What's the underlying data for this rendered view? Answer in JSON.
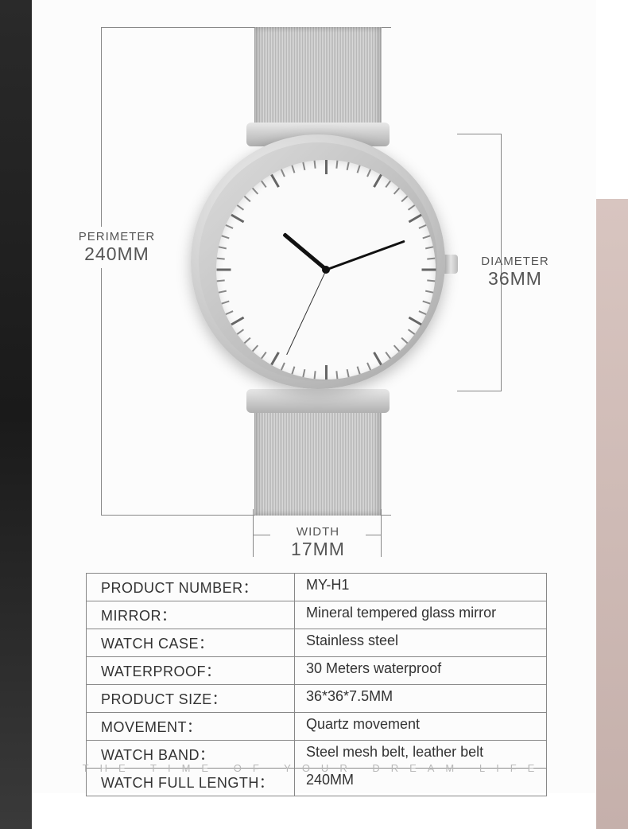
{
  "dimensions": {
    "perimeter": {
      "label": "PERIMETER",
      "value": "240MM"
    },
    "diameter": {
      "label": "DIAMETER",
      "value": "36MM"
    },
    "width": {
      "label": "WIDTH",
      "value": "17MM"
    }
  },
  "watch": {
    "time": {
      "hour_angle": -50,
      "minute_angle": 70,
      "second_angle": 205
    },
    "tick_count": 60,
    "colors": {
      "dial": "#fafafa",
      "case_highlight": "#f2f2f2",
      "case_shadow": "#9a9a9a",
      "hand": "#111111",
      "tick_major": "#666666",
      "tick_minor": "#888888",
      "strap": "#c8c8c8"
    }
  },
  "specs": [
    {
      "k": "PRODUCT NUMBER：",
      "v": "MY-H1"
    },
    {
      "k": "MIRROR：",
      "v": "Mineral tempered glass mirror"
    },
    {
      "k": "WATCH CASE：",
      "v": "Stainless steel"
    },
    {
      "k": "WATERPROOF：",
      "v": "30 Meters waterproof"
    },
    {
      "k": "PRODUCT SIZE：",
      "v": "36*36*7.5MM"
    },
    {
      "k": "MOVEMENT：",
      "v": "Quartz movement"
    },
    {
      "k": "WATCH BAND：",
      "v": "Steel mesh belt, leather belt"
    },
    {
      "k": "WATCH FULL LENGTH：",
      "v": "240MM"
    }
  ],
  "tagline": "THE TIME OF YOUR DREAM LIFE",
  "style": {
    "line_color": "#888888",
    "label_color": "#555555",
    "table_border": "#888888",
    "table_text": "#333333",
    "bg_card": "#fcfcfc",
    "bg_left": "#222222",
    "bg_right": "#d0beb9",
    "label_font_small": 15,
    "label_font_large": 23,
    "table_font": 18,
    "tagline_color": "#b8b8b8",
    "tagline_letter_spacing": 14
  }
}
